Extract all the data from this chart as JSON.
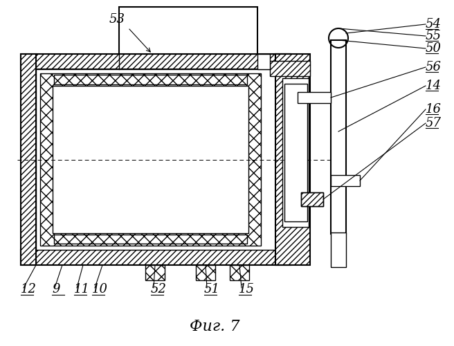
{
  "bg_color": "#ffffff",
  "line_color": "#000000",
  "title": "Фиг. 7",
  "right_labels": [
    [
      "54",
      615,
      35
    ],
    [
      "55",
      615,
      52
    ],
    [
      "50",
      615,
      70
    ],
    [
      "56",
      615,
      97
    ],
    [
      "14",
      615,
      124
    ],
    [
      "16",
      615,
      158
    ],
    [
      "57",
      615,
      178
    ]
  ],
  "bottom_labels": [
    [
      "12",
      30,
      418
    ],
    [
      "9",
      75,
      418
    ],
    [
      "11",
      107,
      418
    ],
    [
      "10",
      133,
      418
    ],
    [
      "52",
      218,
      418
    ],
    [
      "51",
      295,
      418
    ],
    [
      "15",
      345,
      418
    ]
  ],
  "top_label": [
    "53",
    158,
    28
  ],
  "fig_label": [
    "Фиг. 7",
    310,
    472
  ]
}
